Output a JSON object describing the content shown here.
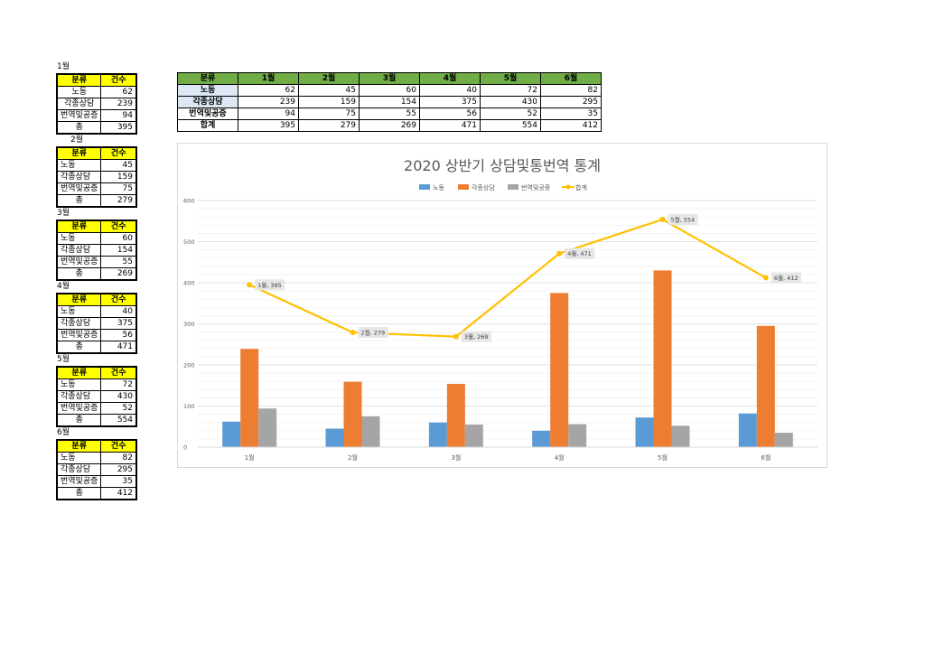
{
  "category_header": "분류",
  "count_header": "건수",
  "months": [
    {
      "label": "1월",
      "rows": [
        {
          "cat": "노동",
          "value": "62"
        },
        {
          "cat": "각종상담",
          "value": "239"
        },
        {
          "cat": "번역및공증",
          "value": "94"
        }
      ],
      "total_label": "총",
      "total": "395"
    },
    {
      "label": "2월",
      "rows": [
        {
          "cat": "노동",
          "value": "45"
        },
        {
          "cat": "각종상담",
          "value": "159"
        },
        {
          "cat": "번역및공증",
          "value": "75"
        }
      ],
      "total_label": "총",
      "total": "279"
    },
    {
      "label": "3월",
      "rows": [
        {
          "cat": "노동",
          "value": "60"
        },
        {
          "cat": "각종상담",
          "value": "154"
        },
        {
          "cat": "번역및공증",
          "value": "55"
        }
      ],
      "total_label": "총",
      "total": "269"
    },
    {
      "label": "4월",
      "rows": [
        {
          "cat": "노동",
          "value": "40"
        },
        {
          "cat": "각종상담",
          "value": "375"
        },
        {
          "cat": "번역및공증",
          "value": "56"
        }
      ],
      "total_label": "총",
      "total": "471"
    },
    {
      "label": "5월",
      "rows": [
        {
          "cat": "노동",
          "value": "72"
        },
        {
          "cat": "각종상담",
          "value": "430"
        },
        {
          "cat": "번역및공증",
          "value": "52"
        }
      ],
      "total_label": "총",
      "total": "554"
    },
    {
      "label": "6월",
      "rows": [
        {
          "cat": "노동",
          "value": "82"
        },
        {
          "cat": "각종상담",
          "value": "295"
        },
        {
          "cat": "번역및공증",
          "value": "35"
        }
      ],
      "total_label": "총",
      "total": "412"
    }
  ],
  "summary": {
    "header": [
      "분류",
      "1월",
      "2월",
      "3월",
      "4월",
      "5월",
      "6월"
    ],
    "rows": [
      {
        "label": "노동",
        "values": [
          "62",
          "45",
          "60",
          "40",
          "72",
          "82"
        ]
      },
      {
        "label": "각종상담",
        "values": [
          "239",
          "159",
          "154",
          "375",
          "430",
          "295"
        ]
      },
      {
        "label": "번역및공증",
        "values": [
          "94",
          "75",
          "55",
          "56",
          "52",
          "35"
        ]
      },
      {
        "label": "합계",
        "values": [
          "395",
          "279",
          "269",
          "471",
          "554",
          "412"
        ]
      }
    ]
  },
  "chart_data": {
    "type": "bar",
    "title": "2020 상반기 상담및통번역 통계",
    "categories": [
      "1월",
      "2월",
      "3월",
      "4월",
      "5월",
      "6월"
    ],
    "series": [
      {
        "name": "노동",
        "type": "bar",
        "color": "#5b9bd5",
        "values": [
          62,
          45,
          60,
          40,
          72,
          82
        ]
      },
      {
        "name": "각종상담",
        "type": "bar",
        "color": "#ed7d31",
        "values": [
          239,
          159,
          154,
          375,
          430,
          295
        ]
      },
      {
        "name": "번역및공증",
        "type": "bar",
        "color": "#a5a5a5",
        "values": [
          94,
          75,
          55,
          56,
          52,
          35
        ]
      },
      {
        "name": "합계",
        "type": "line",
        "color": "#ffc000",
        "values": [
          395,
          279,
          269,
          471,
          554,
          412
        ]
      }
    ],
    "data_labels": [
      "1월, 395",
      "2월, 279",
      "3월, 269",
      "4월, 471",
      "5월, 554",
      "6월, 412"
    ],
    "ylim": [
      0,
      600
    ],
    "yticks": [
      "0",
      "100",
      "200",
      "300",
      "400",
      "500",
      "600"
    ],
    "grid": true,
    "legend": "top",
    "xlabel": "",
    "ylabel": ""
  }
}
